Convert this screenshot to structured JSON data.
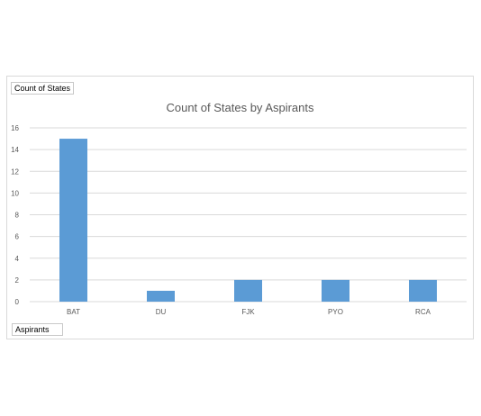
{
  "filter_button_label": "Count of States",
  "axis_button_label": "Aspirants",
  "colors": {
    "bar": "#5b9bd5",
    "grid": "#d9d9d9",
    "text": "#595959"
  },
  "chart_data": {
    "type": "bar",
    "title": "Count of States by Aspirants",
    "categories": [
      "BAT",
      "DU",
      "FJK",
      "PYO",
      "RCA"
    ],
    "values": [
      15,
      1,
      2,
      2,
      2
    ],
    "ylim": [
      0,
      16
    ],
    "yticks": [
      0,
      2,
      4,
      6,
      8,
      10,
      12,
      14,
      16
    ],
    "grid": true,
    "legend": "none"
  }
}
